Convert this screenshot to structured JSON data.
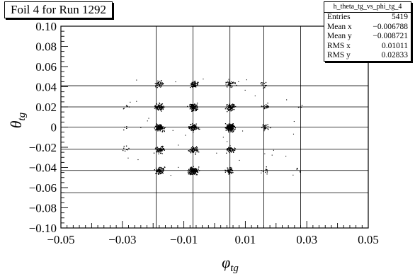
{
  "title": "Foil 4 for Run 1292",
  "stats": {
    "name": "h_theta_tg_vs_phi_tg_4",
    "rows": [
      {
        "label": "Entries",
        "value": "5419"
      },
      {
        "label": "Mean x",
        "value": "−0.006788"
      },
      {
        "label": "Mean y",
        "value": "−0.008721"
      },
      {
        "label": "RMS x",
        "value": "0.01011"
      },
      {
        "label": "RMS y",
        "value": "0.02833"
      }
    ]
  },
  "chart_data": {
    "type": "scatter",
    "xlabel": "φtg",
    "ylabel": "θtg",
    "xlim": [
      -0.05,
      0.05
    ],
    "ylim": [
      -0.1,
      0.1
    ],
    "xticks": [
      "−0.05",
      "−0.03",
      "−0.01",
      "0.01",
      "0.03",
      "0.05"
    ],
    "yticks": [
      "0.10",
      "0.08",
      "0.06",
      "0.04",
      "0.02",
      "0",
      "−0.02",
      "−0.04",
      "−0.06",
      "−0.08",
      "−0.10"
    ],
    "xtick_values": [
      -0.05,
      -0.03,
      -0.01,
      0.01,
      0.03,
      0.05
    ],
    "ytick_values": [
      0.1,
      0.08,
      0.06,
      0.04,
      0.02,
      0,
      -0.02,
      -0.04,
      -0.06,
      -0.08,
      -0.1
    ],
    "grid_x": [
      -0.019,
      -0.007,
      0.005,
      0.016,
      0.028
    ],
    "grid_y": [
      0.041,
      0.02,
      -0.0,
      -0.022,
      -0.043,
      -0.065
    ],
    "clusters": [
      {
        "x": -0.018,
        "y": 0.043,
        "n": 40
      },
      {
        "x": -0.007,
        "y": 0.043,
        "n": 60
      },
      {
        "x": 0.005,
        "y": 0.043,
        "n": 40
      },
      {
        "x": 0.0155,
        "y": 0.042,
        "n": 15
      },
      {
        "x": -0.018,
        "y": 0.02,
        "n": 90
      },
      {
        "x": -0.007,
        "y": 0.02,
        "n": 110
      },
      {
        "x": 0.005,
        "y": 0.02,
        "n": 90
      },
      {
        "x": 0.0165,
        "y": 0.02,
        "n": 18
      },
      {
        "x": -0.018,
        "y": 0.0,
        "n": 120
      },
      {
        "x": -0.007,
        "y": 0.0,
        "n": 100
      },
      {
        "x": 0.005,
        "y": 0.0,
        "n": 200
      },
      {
        "x": 0.0165,
        "y": 0.0,
        "n": 25
      },
      {
        "x": -0.018,
        "y": -0.022,
        "n": 70
      },
      {
        "x": -0.007,
        "y": -0.022,
        "n": 70
      },
      {
        "x": 0.005,
        "y": -0.022,
        "n": 50
      },
      {
        "x": -0.018,
        "y": -0.043,
        "n": 90
      },
      {
        "x": -0.007,
        "y": -0.043,
        "n": 180
      },
      {
        "x": 0.005,
        "y": -0.043,
        "n": 50
      },
      {
        "x": 0.0165,
        "y": -0.043,
        "n": 12
      },
      {
        "x": 0.027,
        "y": -0.043,
        "n": 5
      },
      {
        "x": 0.027,
        "y": 0.02,
        "n": 5
      },
      {
        "x": -0.029,
        "y": 0.02,
        "n": 6
      },
      {
        "x": -0.029,
        "y": -0.022,
        "n": 8
      },
      {
        "x": -0.029,
        "y": 0.0,
        "n": 4
      }
    ]
  }
}
